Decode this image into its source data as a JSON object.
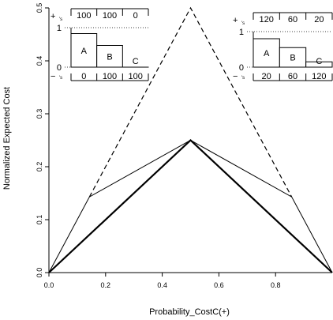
{
  "chart_data": {
    "type": "line",
    "xlabel": "Probability_CostC(+)",
    "ylabel": "Normalized Expected Cost",
    "xlim": [
      0,
      1
    ],
    "ylim": [
      0,
      0.5
    ],
    "x_ticks": [
      "0.0",
      "0.2",
      "0.4",
      "0.6",
      "0.8"
    ],
    "y_ticks": [
      "0.0",
      "0.1",
      "0.2",
      "0.3",
      "0.4",
      "0.5"
    ],
    "grid": false,
    "series": [
      {
        "style": "dashed",
        "x": [
          0.143,
          0.5,
          0.857
        ],
        "y": [
          0.143,
          0.5,
          0.143
        ]
      },
      {
        "style": "thin",
        "x": [
          0,
          0.143,
          0.5,
          0.857,
          1
        ],
        "y": [
          0,
          0.143,
          0.25,
          0.143,
          0
        ]
      },
      {
        "style": "thick",
        "x": [
          0,
          0.5,
          1
        ],
        "y": [
          0,
          0.25,
          0
        ]
      }
    ],
    "insets": [
      {
        "position": "top-left",
        "plus_label": "+",
        "minus_label": "−",
        "subscript": "'s",
        "top_values": [
          "100",
          "100",
          "0"
        ],
        "bottom_values": [
          "0",
          "100",
          "100"
        ],
        "bars": [
          {
            "label": "A",
            "value": 0.85
          },
          {
            "label": "B",
            "value": 0.55
          },
          {
            "label": "C",
            "value": 0.0
          }
        ],
        "scale_top": "1",
        "scale_bottom": "0"
      },
      {
        "position": "top-right",
        "plus_label": "+",
        "minus_label": "−",
        "subscript": "'s",
        "top_values": [
          "120",
          "60",
          "20"
        ],
        "bottom_values": [
          "20",
          "60",
          "120"
        ],
        "bars": [
          {
            "label": "A",
            "value": 0.8
          },
          {
            "label": "B",
            "value": 0.55
          },
          {
            "label": "C",
            "value": 0.15
          }
        ],
        "scale_top": "1",
        "scale_bottom": "0"
      }
    ]
  }
}
